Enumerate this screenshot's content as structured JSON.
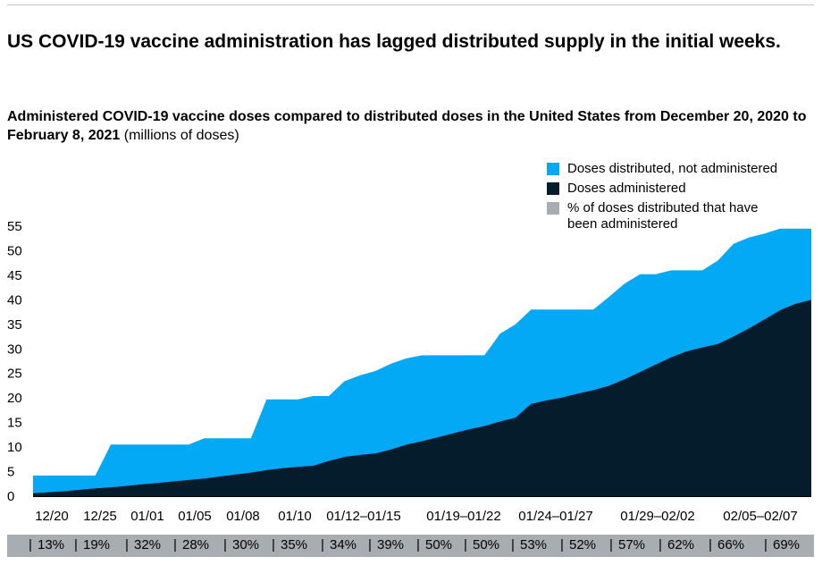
{
  "header": {
    "title": "US COVID-19 vaccine administration has lagged distributed supply in the initial weeks."
  },
  "subtitle": {
    "main": "Administered COVID-19 vaccine doses compared to distributed doses in the United States from December 20, 2020 to February 8, 2021",
    "unit": "(millions of doses)"
  },
  "legend": [
    {
      "label": "Doses distributed, not administered",
      "color": "#03a9f4"
    },
    {
      "label": "Doses administered",
      "color": "#051c2c"
    },
    {
      "label": "% of doses distributed that have been administered",
      "color": "#a8adb2"
    }
  ],
  "chart_data": {
    "type": "area",
    "ylim": [
      0,
      55
    ],
    "yticks": [
      0,
      5,
      10,
      15,
      20,
      25,
      30,
      35,
      40,
      45,
      50,
      55
    ],
    "x_tick_labels": [
      "12/20",
      "12/25",
      "01/01",
      "01/05",
      "01/08",
      "01/10",
      "01/12–01/15",
      "01/19–01/22",
      "01/24–01/27",
      "01/29–02/02",
      "02/05–02/07"
    ],
    "series": [
      {
        "name": "Doses distributed, not administered",
        "color": "#03a9f4",
        "values_total": [
          4.2,
          4.2,
          4.2,
          4.2,
          4.2,
          10.5,
          10.5,
          10.5,
          10.5,
          10.5,
          10.5,
          11.8,
          11.8,
          11.8,
          11.8,
          19.7,
          19.7,
          19.7,
          20.4,
          20.4,
          23.4,
          24.6,
          25.5,
          27.0,
          28.1,
          28.7,
          28.7,
          28.7,
          28.7,
          28.7,
          33.1,
          35.0,
          38.0,
          38.0,
          38.0,
          38.0,
          38.0,
          40.6,
          43.3,
          45.2,
          45.2,
          46.0,
          46.0,
          46.0,
          48.0,
          51.4,
          52.7,
          53.5,
          54.5,
          54.5,
          54.5
        ]
      },
      {
        "name": "Doses administered",
        "color": "#051c2c",
        "values": [
          0.6,
          0.8,
          1.0,
          1.3,
          1.6,
          1.8,
          2.1,
          2.4,
          2.7,
          3.0,
          3.3,
          3.6,
          4.0,
          4.4,
          4.8,
          5.3,
          5.7,
          6.0,
          6.2,
          7.2,
          8.0,
          8.4,
          8.7,
          9.5,
          10.5,
          11.2,
          12.0,
          12.8,
          13.6,
          14.3,
          15.2,
          16.0,
          18.8,
          19.5,
          20.1,
          20.9,
          21.6,
          22.5,
          23.8,
          25.3,
          26.8,
          28.3,
          29.5,
          30.3,
          31.0,
          32.5,
          34.2,
          36.0,
          37.9,
          39.2,
          40.0
        ]
      }
    ],
    "percent_row": [
      "13%",
      "19%",
      "32%",
      "28%",
      "30%",
      "35%",
      "34%",
      "39%",
      "50%",
      "50%",
      "53%",
      "52%",
      "57%",
      "62%",
      "66%",
      "69%"
    ]
  }
}
